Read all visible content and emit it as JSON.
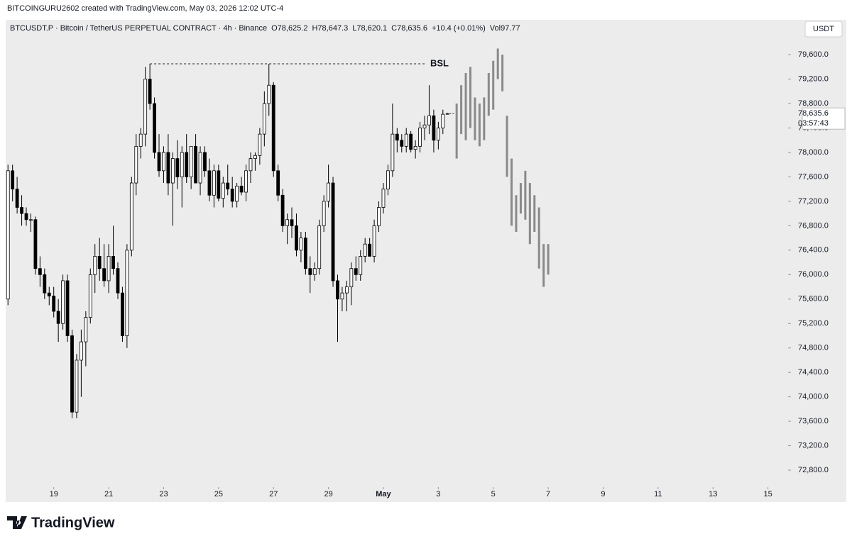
{
  "chart_data": {
    "type": "candlestick",
    "title": "BITCOINGURU2602 created with TradingView.com, May 03, 2026 12:02 UTC-4",
    "symbol": "BTCUSDT.P · Bitcoin / TetherUS PERPETUAL CONTRACT · 4h · Binance",
    "ohlc_legend": [
      "O78,625.2",
      "H78,647.3",
      "L78,620.1",
      "C78,635.6",
      "+10.4 (+0.01%)",
      "Vol97.77"
    ],
    "currency": "USDT",
    "countdown": "03:57:43",
    "last_price": {
      "value": 78635.6,
      "label": "78,635.6"
    },
    "bsl": {
      "value": 79450,
      "label": "BSL"
    },
    "brand": "TradingView",
    "open": [
      75600,
      77700,
      77400,
      77100,
      77000,
      76900,
      76900,
      76100,
      76000,
      75700,
      75650,
      75400,
      75200,
      75900,
      75000,
      73750,
      74600,
      74900,
      75300,
      76000,
      76300,
      76100,
      75900,
      76300,
      76100,
      75700,
      75000,
      76400,
      77500,
      78100,
      78300,
      79200,
      78800,
      78000,
      77700,
      78000,
      77500,
      77900,
      77600,
      78000,
      77600,
      78100,
      77500,
      78000,
      77700,
      77300,
      77700,
      77250,
      77500,
      77400,
      77200,
      77450,
      77350,
      77700,
      77900,
      77950,
      78300,
      78800,
      79100,
      77700,
      77300,
      76800,
      76900,
      76800,
      76400,
      76600,
      76100,
      76000,
      76100,
      76800,
      77200,
      77500,
      75900,
      75600,
      75700,
      75800,
      76100,
      76000,
      76300,
      76500,
      76300,
      76800,
      77100,
      77400,
      77700,
      78300,
      78200,
      78100,
      78300,
      78050,
      78100,
      78400,
      78450,
      78600,
      78200,
      78400,
      78625.2
    ],
    "high": [
      77800,
      77800,
      77600,
      77300,
      77100,
      77000,
      76950,
      76300,
      76100,
      75800,
      75800,
      75600,
      76000,
      76000,
      75100,
      74700,
      75100,
      75400,
      76100,
      76500,
      76600,
      76500,
      76500,
      76800,
      76200,
      75800,
      76500,
      77600,
      78300,
      78400,
      79400,
      79450,
      78900,
      78300,
      78100,
      78300,
      78000,
      78200,
      78100,
      78300,
      78100,
      78300,
      78100,
      78100,
      77900,
      77800,
      77800,
      77600,
      77800,
      77600,
      77500,
      77600,
      77800,
      78000,
      78000,
      78400,
      79000,
      79450,
      79150,
      77800,
      77400,
      77000,
      77100,
      77000,
      76700,
      76700,
      76300,
      76200,
      76900,
      77300,
      77800,
      77600,
      76000,
      75800,
      75900,
      76200,
      76300,
      76400,
      76600,
      76600,
      76900,
      77200,
      77500,
      77800,
      78800,
      78400,
      78300,
      78400,
      78350,
      78200,
      78500,
      78600,
      79100,
      78700,
      78500,
      78700,
      78647.3
    ],
    "low": [
      75500,
      77200,
      77000,
      76800,
      76800,
      76700,
      76000,
      75800,
      75600,
      75500,
      75300,
      74900,
      75100,
      74900,
      73650,
      73650,
      74000,
      74500,
      75200,
      75700,
      75900,
      75800,
      75700,
      76000,
      75600,
      74900,
      74800,
      76300,
      77300,
      77900,
      78100,
      78700,
      77900,
      77600,
      77500,
      77300,
      76800,
      77400,
      77100,
      77500,
      77400,
      77500,
      77300,
      77600,
      77200,
      77100,
      77200,
      77100,
      77300,
      77100,
      77100,
      77300,
      77200,
      77500,
      77700,
      77800,
      78100,
      78600,
      77600,
      77200,
      76700,
      76500,
      76600,
      76300,
      76200,
      76000,
      75700,
      75900,
      76000,
      76700,
      77100,
      75800,
      74900,
      75400,
      75400,
      75500,
      75900,
      75900,
      76200,
      76300,
      76200,
      76700,
      77000,
      77300,
      77600,
      78000,
      78000,
      78000,
      78000,
      77900,
      78000,
      78200,
      78300,
      78000,
      78050,
      78300,
      78620.1
    ],
    "close": [
      77700,
      77400,
      77100,
      77000,
      76900,
      76900,
      76100,
      76000,
      75700,
      75650,
      75400,
      75200,
      75900,
      75000,
      73750,
      74600,
      74900,
      75300,
      76000,
      76300,
      76100,
      75900,
      76300,
      76100,
      75700,
      75000,
      76400,
      77500,
      78100,
      78300,
      79200,
      78800,
      78000,
      77700,
      78000,
      77500,
      77900,
      77600,
      78000,
      77600,
      78100,
      77500,
      78000,
      77700,
      77300,
      77700,
      77250,
      77500,
      77400,
      77200,
      77450,
      77350,
      77700,
      77900,
      77950,
      78300,
      78800,
      79100,
      77700,
      77300,
      76800,
      76900,
      76800,
      76400,
      76600,
      76100,
      76000,
      76100,
      76800,
      77200,
      77500,
      75900,
      75600,
      75700,
      75800,
      76100,
      76000,
      76300,
      76500,
      76300,
      76800,
      77100,
      77400,
      77700,
      78300,
      78200,
      78100,
      78300,
      78050,
      78100,
      78400,
      78450,
      78600,
      78200,
      78400,
      78625.2,
      78635.6
    ],
    "up_color": "#ffffff",
    "down_color": "#000000",
    "projection": {
      "color": "#8a8a8a",
      "high": [
        78800,
        79100,
        79300,
        79400,
        78900,
        78800,
        78900,
        79300,
        79500,
        79700,
        79600,
        78600,
        77900,
        77300,
        77500,
        77700,
        77500,
        77300,
        77100,
        76500,
        76500
      ],
      "low": [
        77900,
        78300,
        78200,
        78400,
        78200,
        78100,
        78200,
        78600,
        78700,
        79200,
        79000,
        77600,
        76800,
        76700,
        77000,
        76900,
        76500,
        76700,
        76100,
        75800,
        76000
      ]
    },
    "ylim": [
      72545,
      80170
    ],
    "yticks": [
      {
        "value": 72800,
        "label": "72,800.0"
      },
      {
        "value": 73200,
        "label": "73,200.0"
      },
      {
        "value": 73600,
        "label": "73,600.0"
      },
      {
        "value": 74000,
        "label": "74,000.0"
      },
      {
        "value": 74400,
        "label": "74,400.0"
      },
      {
        "value": 74800,
        "label": "74,800.0"
      },
      {
        "value": 75200,
        "label": "75,200.0"
      },
      {
        "value": 75600,
        "label": "75,600.0"
      },
      {
        "value": 76000,
        "label": "76,000.0"
      },
      {
        "value": 76400,
        "label": "76,400.0"
      },
      {
        "value": 76800,
        "label": "76,800.0"
      },
      {
        "value": 77200,
        "label": "77,200.0"
      },
      {
        "value": 77600,
        "label": "77,600.0"
      },
      {
        "value": 78000,
        "label": "78,000.0"
      },
      {
        "value": 78400,
        "label": "78,400.0"
      },
      {
        "value": 78800,
        "label": "78,800.0"
      },
      {
        "value": 79200,
        "label": "79,200.0"
      },
      {
        "value": 79600,
        "label": "79,600.0"
      }
    ],
    "xlim": [
      -0.5,
      170.4
    ],
    "xticks": [
      {
        "value": 10,
        "label": "19"
      },
      {
        "value": 22,
        "label": "21"
      },
      {
        "value": 34,
        "label": "23"
      },
      {
        "value": 46,
        "label": "25"
      },
      {
        "value": 58,
        "label": "27"
      },
      {
        "value": 70,
        "label": "29"
      },
      {
        "value": 82,
        "label": "May"
      },
      {
        "value": 94,
        "label": "3"
      },
      {
        "value": 106,
        "label": "5"
      },
      {
        "value": 118,
        "label": "7"
      },
      {
        "value": 130,
        "label": "9"
      },
      {
        "value": 142,
        "label": "11"
      },
      {
        "value": 154,
        "label": "13"
      },
      {
        "value": 166,
        "label": "15"
      }
    ]
  }
}
